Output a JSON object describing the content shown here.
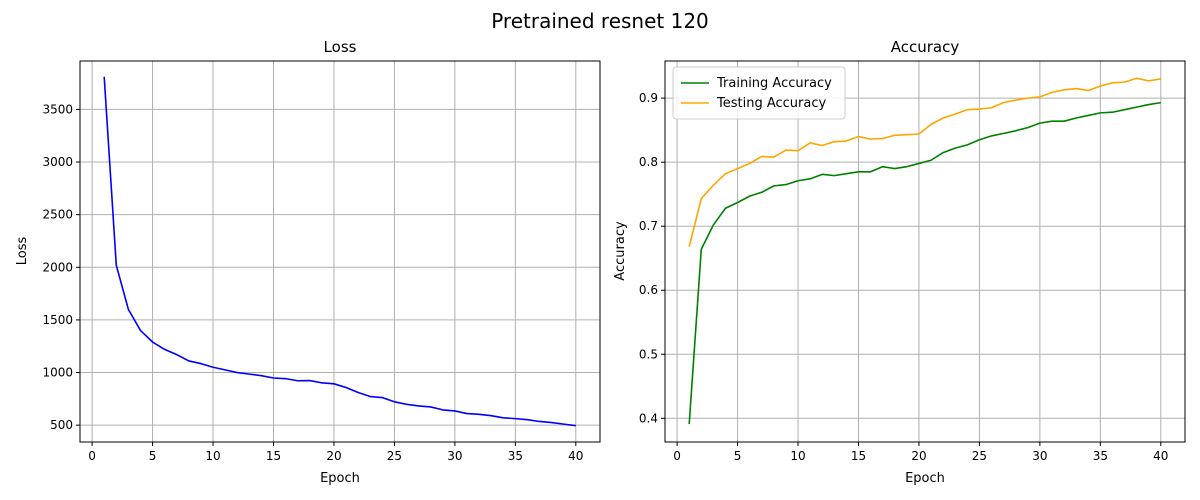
{
  "figure_title": "Pretrained resnet 120",
  "chart_data": [
    {
      "type": "line",
      "title": "Loss",
      "xlabel": "Epoch",
      "ylabel": "Loss",
      "xlim": [
        -1,
        42
      ],
      "ylim": [
        340,
        3960
      ],
      "xticks": [
        0,
        5,
        10,
        15,
        20,
        25,
        30,
        35,
        40
      ],
      "yticks": [
        500,
        1000,
        1500,
        2000,
        2500,
        3000,
        3500
      ],
      "grid": true,
      "legend": null,
      "x": [
        1,
        2,
        3,
        4,
        5,
        6,
        7,
        8,
        9,
        10,
        11,
        12,
        13,
        14,
        15,
        16,
        17,
        18,
        19,
        20,
        21,
        22,
        23,
        24,
        25,
        26,
        27,
        28,
        29,
        30,
        31,
        32,
        33,
        34,
        35,
        36,
        37,
        38,
        39,
        40
      ],
      "series": [
        {
          "color": "#0000ff",
          "values": [
            3810,
            2020,
            1600,
            1400,
            1290,
            1220,
            1170,
            1110,
            1085,
            1050,
            1025,
            1000,
            985,
            970,
            948,
            942,
            922,
            924,
            902,
            893,
            858,
            810,
            772,
            762,
            722,
            698,
            683,
            673,
            645,
            635,
            610,
            603,
            590,
            570,
            562,
            552,
            535,
            525,
            510,
            495
          ]
        }
      ]
    },
    {
      "type": "line",
      "title": "Accuracy",
      "xlabel": "Epoch",
      "ylabel": "Accuracy",
      "xlim": [
        -1,
        42
      ],
      "ylim": [
        0.363,
        0.958
      ],
      "xticks": [
        0,
        5,
        10,
        15,
        20,
        25,
        30,
        35,
        40
      ],
      "yticks": [
        0.4,
        0.5,
        0.6,
        0.7,
        0.8,
        0.9
      ],
      "grid": true,
      "legend": "upper left",
      "x": [
        1,
        2,
        3,
        4,
        5,
        6,
        7,
        8,
        9,
        10,
        11,
        12,
        13,
        14,
        15,
        16,
        17,
        18,
        19,
        20,
        21,
        22,
        23,
        24,
        25,
        26,
        27,
        28,
        29,
        30,
        31,
        32,
        33,
        34,
        35,
        36,
        37,
        38,
        39,
        40
      ],
      "series": [
        {
          "name": "Training Accuracy",
          "color": "#008000",
          "values": [
            0.391,
            0.664,
            0.702,
            0.728,
            0.737,
            0.747,
            0.753,
            0.763,
            0.765,
            0.771,
            0.774,
            0.781,
            0.779,
            0.782,
            0.785,
            0.785,
            0.793,
            0.79,
            0.793,
            0.798,
            0.803,
            0.815,
            0.822,
            0.827,
            0.835,
            0.841,
            0.845,
            0.849,
            0.854,
            0.861,
            0.864,
            0.864,
            0.869,
            0.873,
            0.877,
            0.878,
            0.882,
            0.886,
            0.89,
            0.893
          ]
        },
        {
          "name": "Testing Accuracy",
          "color": "#ffa500",
          "values": [
            0.668,
            0.743,
            0.764,
            0.782,
            0.79,
            0.798,
            0.809,
            0.808,
            0.819,
            0.818,
            0.83,
            0.826,
            0.832,
            0.833,
            0.84,
            0.836,
            0.837,
            0.842,
            0.843,
            0.844,
            0.859,
            0.869,
            0.875,
            0.882,
            0.883,
            0.885,
            0.893,
            0.897,
            0.9,
            0.902,
            0.909,
            0.913,
            0.915,
            0.912,
            0.919,
            0.924,
            0.925,
            0.931,
            0.927,
            0.93
          ]
        }
      ]
    }
  ]
}
